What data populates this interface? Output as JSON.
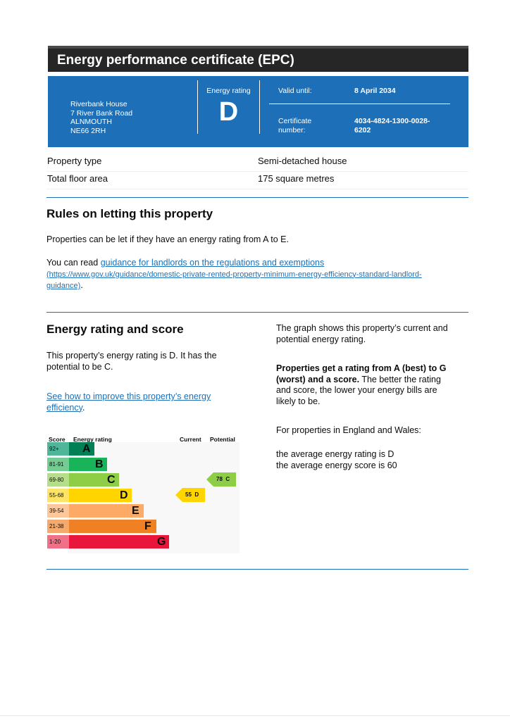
{
  "header": {
    "title": "Energy performance certificate (EPC)"
  },
  "certificate": {
    "address": [
      "Riverbank House",
      "7 River Bank Road",
      "ALNMOUTH",
      "NE66 2RH"
    ],
    "rating_label": "Energy rating",
    "rating": "D",
    "valid_label": "Valid until:",
    "valid_until": "8 April 2034",
    "cert_label_1": "Certificate",
    "cert_label_2": "number:",
    "cert_number_1": "4034-4824-1300-0028-",
    "cert_number_2": "6202"
  },
  "property": {
    "type_label": "Property type",
    "type_value": "Semi-detached house",
    "area_label": "Total floor area",
    "area_value": "175 square metres"
  },
  "letting": {
    "heading": "Rules on letting this property",
    "text": "Properties can be let if they have an energy rating from A to E.",
    "read_prefix": "You can read ",
    "link_text": "guidance for landlords on the regulations and exemptions",
    "url_line1": "(https://www.gov.uk/guidance/domestic-private-rented-property-minimum-energy-efficiency-standard-landlord-",
    "url_line2": "guidance)",
    "url_suffix": "."
  },
  "energy": {
    "heading": "Energy rating and score",
    "text_line1": "This property’s energy rating is D. It has the",
    "text_line2": "potential to be C.",
    "improve_line1": "See how to improve this property’s energy",
    "improve_line2": "efficiency",
    "improve_suffix": ".",
    "graph_line1": "The graph shows this property’s current and",
    "graph_line2": "potential energy rating.",
    "rating_bold_1": "Properties get a rating from A (best) to G",
    "rating_bold_2": "(worst) and a score.",
    "rating_rest_1": " The better the rating",
    "rating_rest_2": "and score, the lower your energy bills are",
    "rating_rest_3": "likely to be.",
    "england_wales": "For properties in England and Wales:",
    "avg_rating": "the average energy rating is D",
    "avg_score": "the average energy score is 60"
  },
  "chart_data": {
    "type": "bar",
    "headers": {
      "score": "Score",
      "rating": "Energy rating",
      "current": "Current",
      "potential": "Potential"
    },
    "bands": [
      {
        "score": "92+",
        "letter": "A",
        "color": "#008054",
        "score_color": "#4fb69a"
      },
      {
        "score": "81-91",
        "letter": "B",
        "color": "#19b459",
        "score_color": "#74cc93"
      },
      {
        "score": "69-80",
        "letter": "C",
        "color": "#8dce46",
        "score_color": "#b6de8a"
      },
      {
        "score": "55-68",
        "letter": "D",
        "color": "#ffd500",
        "score_color": "#ffe466"
      },
      {
        "score": "39-54",
        "letter": "E",
        "color": "#fcaa65",
        "score_color": "#fcc79a"
      },
      {
        "score": "21-38",
        "letter": "F",
        "color": "#ef8023",
        "score_color": "#f4aa6c"
      },
      {
        "score": "1-20",
        "letter": "G",
        "color": "#e9153b",
        "score_color": "#f07088"
      }
    ],
    "current": {
      "score": 55,
      "band": "D",
      "label": "55  D",
      "color": "#ffd500"
    },
    "potential": {
      "score": 78,
      "band": "C",
      "label": "78  C",
      "color": "#8dce46"
    }
  }
}
